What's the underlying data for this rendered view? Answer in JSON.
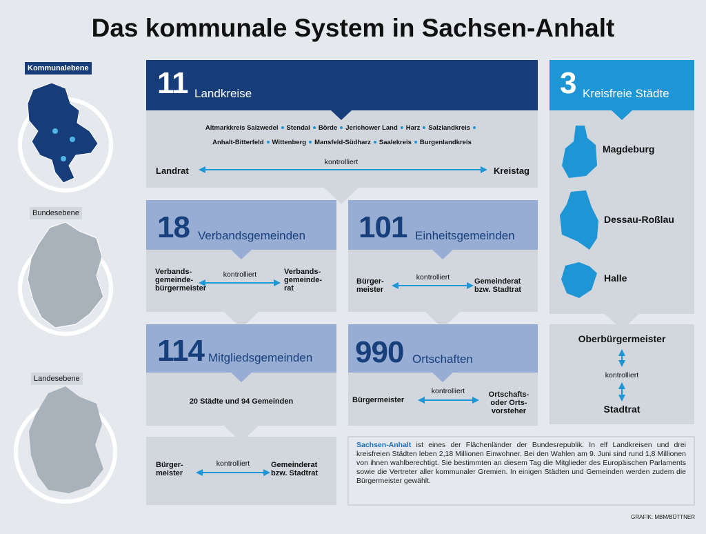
{
  "title": "Das kommunale System in Sachsen-Anhalt",
  "levels": [
    "Kommunalebene",
    "Bundesebene",
    "Landesebene"
  ],
  "landkreise": {
    "number": 11,
    "label": "Landkreise",
    "names": [
      "Altmarkkreis Salzwedel",
      "Stendal",
      "Börde",
      "Jerichower Land",
      "Harz",
      "Salzlandkreis",
      "Anhalt-Bitterfeld",
      "Wittenberg",
      "Mansfeld-Südharz",
      "Saalekreis",
      "Burgenlandkreis"
    ],
    "left": "Landrat",
    "relation": "kontrolliert",
    "right": "Kreistag"
  },
  "kreisfreie_staedte": {
    "number": 3,
    "label": "Kreisfreie Städte",
    "cities": [
      "Magdeburg",
      "Dessau-Roßlau",
      "Halle"
    ],
    "top": "Oberbürgermeister",
    "relation": "kontrolliert",
    "bottom": "Stadtrat"
  },
  "verbandsgemeinden": {
    "number": 18,
    "label": "Verbandsgemeinden",
    "left": [
      "Verbands-",
      "gemeinde-",
      "bürgermeister"
    ],
    "relation": "kontrolliert",
    "right": [
      "Verbands-",
      "gemeinde-",
      "rat"
    ]
  },
  "einheitsgemeinden": {
    "number": 101,
    "label": "Einheitsgemeinden",
    "left": [
      "Bürger-",
      "meister"
    ],
    "relation": "kontrolliert",
    "right": [
      "Gemeinderat",
      "bzw. Stadtrat"
    ]
  },
  "mitgliedsgemeinden": {
    "number": 114,
    "label": "Mitgliedsgemeinden",
    "text": "20 Städte und 94 Gemeinden"
  },
  "ortschaften": {
    "number": 990,
    "label": "Ortschaften",
    "left": "Bürgermeister",
    "relation": "kontrolliert",
    "right": [
      "Ortschafts-",
      "oder Orts-",
      "vorsteher"
    ]
  },
  "gemeinden": {
    "left": [
      "Bürger-",
      "meister"
    ],
    "relation": "kontrolliert",
    "right": [
      "Gemeinderat",
      "bzw. Stadtrat"
    ]
  },
  "info": {
    "highlight": "Sachsen-Anhalt",
    "text": "ist eines der Flächenländer der Bundesrepublik. In elf Landkreisen und drei kreisfreien Städten leben 2,18 Millionen Einwohner. Bei den Wahlen am 9. Juni sind rund 1,8 Millionen von ihnen wahlberechtigt. Sie bestimmten an diesem Tag die Mitglieder des Europäischen Parlaments sowie die Vertreter aller kommunaler Gremien. In einigen Städten und Gemeinden werden zudem die Bürgermeister gewählt."
  },
  "credit": "GRAFIK: MBM/BÜTTNER"
}
